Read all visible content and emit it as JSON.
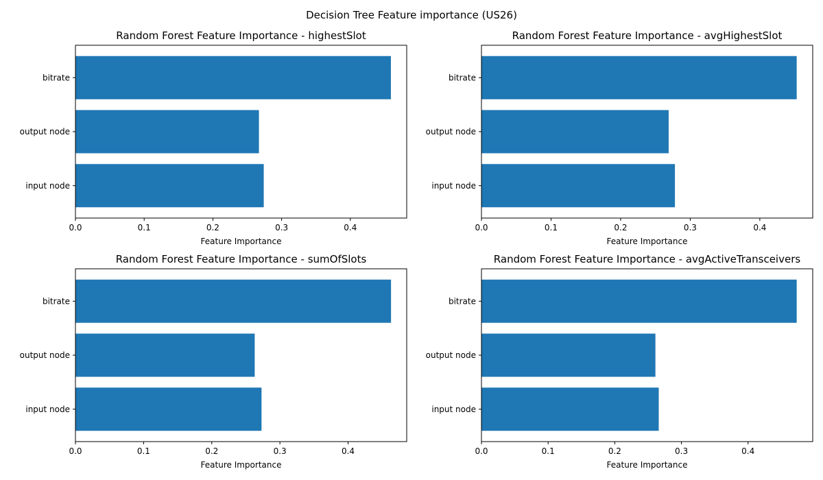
{
  "figure": {
    "title": "Decision Tree Feature importance (US26)"
  },
  "chart_data": [
    {
      "type": "bar",
      "orientation": "horizontal",
      "title": "Random Forest Feature Importance - highestSlot",
      "xlabel": "Feature Importance",
      "ylabel": "",
      "categories": [
        "bitrate",
        "output node",
        "input node"
      ],
      "values": [
        0.459,
        0.267,
        0.274
      ],
      "xlim": [
        0,
        0.482
      ],
      "xticks": [
        0.0,
        0.1,
        0.2,
        0.3,
        0.4
      ],
      "xtick_labels": [
        "0.0",
        "0.1",
        "0.2",
        "0.3",
        "0.4"
      ],
      "grid": false,
      "bar_color": "#1f77b4"
    },
    {
      "type": "bar",
      "orientation": "horizontal",
      "title": "Random Forest Feature Importance - avgHighestSlot",
      "xlabel": "Feature Importance",
      "ylabel": "",
      "categories": [
        "bitrate",
        "output node",
        "input node"
      ],
      "values": [
        0.453,
        0.269,
        0.278
      ],
      "xlim": [
        0,
        0.476
      ],
      "xticks": [
        0.0,
        0.1,
        0.2,
        0.3,
        0.4
      ],
      "xtick_labels": [
        "0.0",
        "0.1",
        "0.2",
        "0.3",
        "0.4"
      ],
      "grid": false,
      "bar_color": "#1f77b4"
    },
    {
      "type": "bar",
      "orientation": "horizontal",
      "title": "Random Forest Feature Importance - sumOfSlots",
      "xlabel": "Feature Importance",
      "ylabel": "",
      "categories": [
        "bitrate",
        "output node",
        "input node"
      ],
      "values": [
        0.463,
        0.263,
        0.273
      ],
      "xlim": [
        0,
        0.486
      ],
      "xticks": [
        0.0,
        0.1,
        0.2,
        0.3,
        0.4
      ],
      "xtick_labels": [
        "0.0",
        "0.1",
        "0.2",
        "0.3",
        "0.4"
      ],
      "grid": false,
      "bar_color": "#1f77b4"
    },
    {
      "type": "bar",
      "orientation": "horizontal",
      "title": "Random Forest Feature Importance - avgActiveTransceivers",
      "xlabel": "Feature Importance",
      "ylabel": "",
      "categories": [
        "bitrate",
        "output node",
        "input node"
      ],
      "values": [
        0.473,
        0.261,
        0.266
      ],
      "xlim": [
        0,
        0.497
      ],
      "xticks": [
        0.0,
        0.1,
        0.2,
        0.3,
        0.4
      ],
      "xtick_labels": [
        "0.0",
        "0.1",
        "0.2",
        "0.3",
        "0.4"
      ],
      "grid": false,
      "bar_color": "#1f77b4"
    }
  ]
}
